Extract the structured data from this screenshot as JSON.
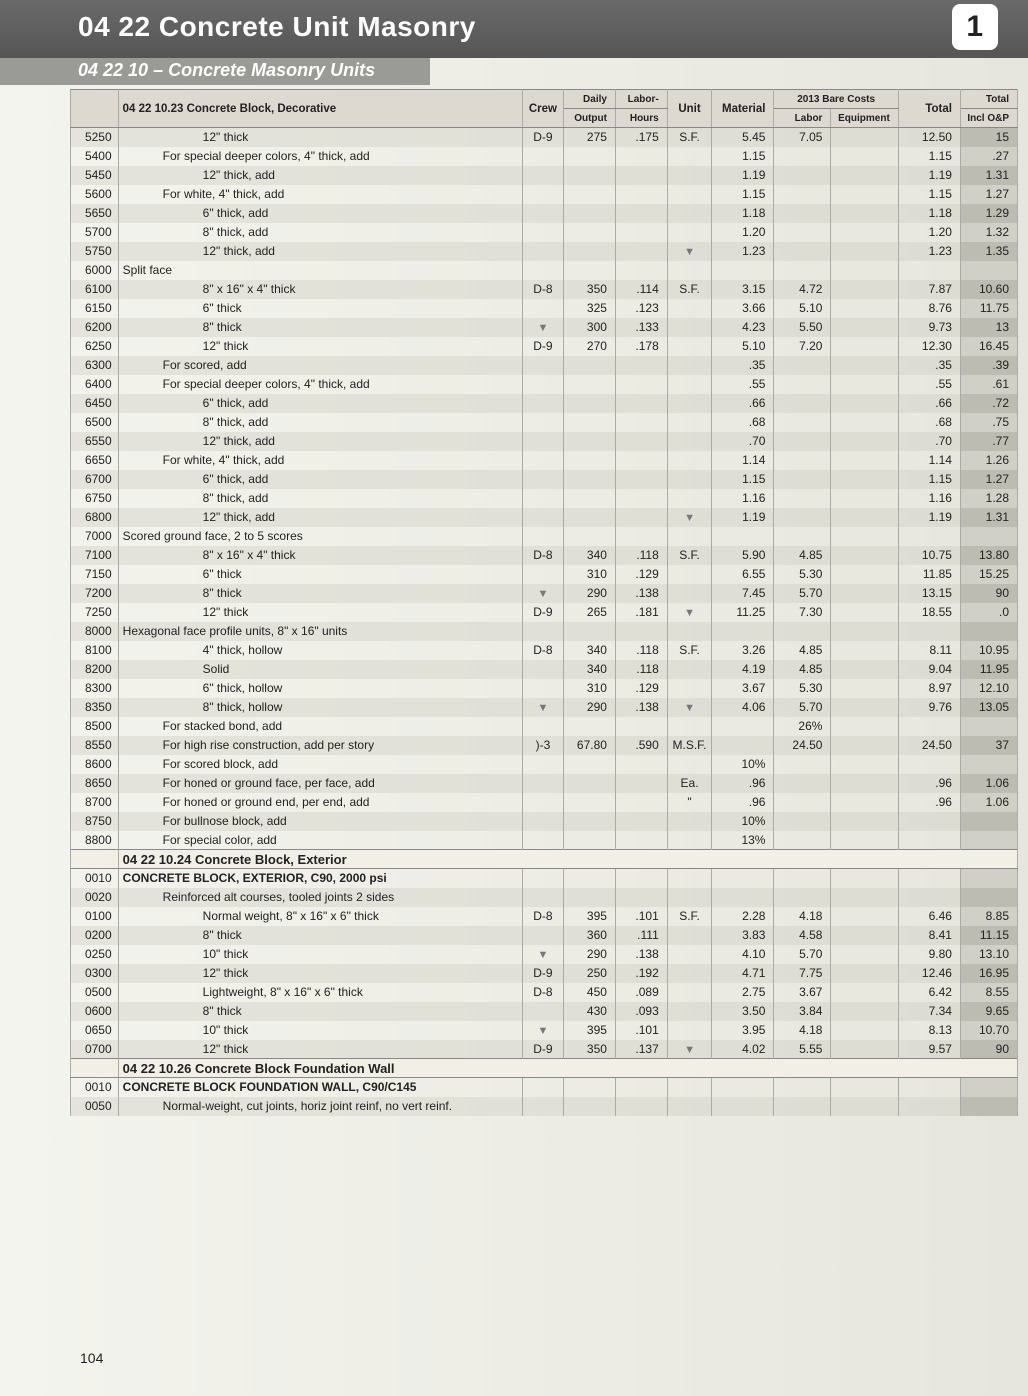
{
  "header": {
    "title": "04 22 Concrete Unit Masonry",
    "subtitle": "04 22 10 – Concrete Masonry Units",
    "page_badge": "1",
    "footer_page": "104"
  },
  "columns": {
    "code": "",
    "desc": "",
    "crew": "Crew",
    "daily_output_top": "Daily",
    "daily_output_bot": "Output",
    "labor_hours_top": "Labor-",
    "labor_hours_bot": "Hours",
    "unit": "Unit",
    "material": "Material",
    "labor": "Labor",
    "equipment": "Equipment",
    "total": "Total",
    "bare_header": "2013 Bare Costs",
    "incl_top": "Total",
    "incl_bot": "Incl O&P"
  },
  "sections": [
    {
      "title": "04 22 10.23  Concrete Block, Decorative",
      "rows": [
        {
          "code": "5250",
          "desc": "12\" thick",
          "indent": 2,
          "crew": "D-9",
          "out": "275",
          "hrs": ".175",
          "unit": "S.F.",
          "mat": "5.45",
          "lab": "7.05",
          "tot": "12.50",
          "op": "15",
          "stripe": true
        },
        {
          "code": "5400",
          "desc": "For special deeper colors, 4\" thick, add",
          "indent": 1,
          "mat": "1.15",
          "tot": "1.15",
          "op": ".27"
        },
        {
          "code": "5450",
          "desc": "12\" thick, add",
          "indent": 2,
          "mat": "1.19",
          "tot": "1.19",
          "op": "1.31",
          "stripe": true
        },
        {
          "code": "5600",
          "desc": "For white, 4\" thick, add",
          "indent": 1,
          "mat": "1.15",
          "tot": "1.15",
          "op": "1.27"
        },
        {
          "code": "5650",
          "desc": "6\" thick, add",
          "indent": 2,
          "mat": "1.18",
          "tot": "1.18",
          "op": "1.29",
          "stripe": true
        },
        {
          "code": "5700",
          "desc": "8\" thick, add",
          "indent": 2,
          "mat": "1.20",
          "tot": "1.20",
          "op": "1.32"
        },
        {
          "code": "5750",
          "desc": "12\" thick, add",
          "indent": 2,
          "mat": "1.23",
          "tot": "1.23",
          "op": "1.35",
          "arrow": true,
          "stripe": true
        },
        {
          "code": "6000",
          "desc": "Split face",
          "indent": 0
        },
        {
          "code": "6100",
          "desc": "8\" x 16\" x 4\" thick",
          "indent": 2,
          "crew": "D-8",
          "out": "350",
          "hrs": ".114",
          "unit": "S.F.",
          "mat": "3.15",
          "lab": "4.72",
          "tot": "7.87",
          "op": "10.60",
          "stripe": true
        },
        {
          "code": "6150",
          "desc": "6\" thick",
          "indent": 2,
          "out": "325",
          "hrs": ".123",
          "mat": "3.66",
          "lab": "5.10",
          "tot": "8.76",
          "op": "11.75"
        },
        {
          "code": "6200",
          "desc": "8\" thick",
          "indent": 2,
          "crewArrow": true,
          "out": "300",
          "hrs": ".133",
          "mat": "4.23",
          "lab": "5.50",
          "tot": "9.73",
          "op": "13",
          "stripe": true
        },
        {
          "code": "6250",
          "desc": "12\" thick",
          "indent": 2,
          "crew": "D-9",
          "out": "270",
          "hrs": ".178",
          "mat": "5.10",
          "lab": "7.20",
          "tot": "12.30",
          "op": "16.45"
        },
        {
          "code": "6300",
          "desc": "For scored, add",
          "indent": 1,
          "mat": ".35",
          "tot": ".35",
          "op": ".39",
          "stripe": true
        },
        {
          "code": "6400",
          "desc": "For special deeper colors, 4\" thick, add",
          "indent": 1,
          "mat": ".55",
          "tot": ".55",
          "op": ".61"
        },
        {
          "code": "6450",
          "desc": "6\" thick, add",
          "indent": 2,
          "mat": ".66",
          "tot": ".66",
          "op": ".72",
          "stripe": true
        },
        {
          "code": "6500",
          "desc": "8\" thick, add",
          "indent": 2,
          "mat": ".68",
          "tot": ".68",
          "op": ".75"
        },
        {
          "code": "6550",
          "desc": "12\" thick, add",
          "indent": 2,
          "mat": ".70",
          "tot": ".70",
          "op": ".77",
          "stripe": true
        },
        {
          "code": "6650",
          "desc": "For white, 4\" thick, add",
          "indent": 1,
          "mat": "1.14",
          "tot": "1.14",
          "op": "1.26"
        },
        {
          "code": "6700",
          "desc": "6\" thick, add",
          "indent": 2,
          "mat": "1.15",
          "tot": "1.15",
          "op": "1.27",
          "stripe": true
        },
        {
          "code": "6750",
          "desc": "8\" thick, add",
          "indent": 2,
          "mat": "1.16",
          "tot": "1.16",
          "op": "1.28"
        },
        {
          "code": "6800",
          "desc": "12\" thick, add",
          "indent": 2,
          "mat": "1.19",
          "tot": "1.19",
          "op": "1.31",
          "arrow": true,
          "stripe": true
        },
        {
          "code": "7000",
          "desc": "Scored ground face, 2 to 5 scores",
          "indent": 0
        },
        {
          "code": "7100",
          "desc": "8\" x 16\" x 4\" thick",
          "indent": 2,
          "crew": "D-8",
          "out": "340",
          "hrs": ".118",
          "unit": "S.F.",
          "mat": "5.90",
          "lab": "4.85",
          "tot": "10.75",
          "op": "13.80",
          "stripe": true
        },
        {
          "code": "7150",
          "desc": "6\" thick",
          "indent": 2,
          "out": "310",
          "hrs": ".129",
          "mat": "6.55",
          "lab": "5.30",
          "tot": "11.85",
          "op": "15.25"
        },
        {
          "code": "7200",
          "desc": "8\" thick",
          "indent": 2,
          "crewArrow": true,
          "out": "290",
          "hrs": ".138",
          "mat": "7.45",
          "lab": "5.70",
          "tot": "13.15",
          "op": "90",
          "stripe": true
        },
        {
          "code": "7250",
          "desc": "12\" thick",
          "indent": 2,
          "crew": "D-9",
          "out": "265",
          "hrs": ".181",
          "mat": "11.25",
          "lab": "7.30",
          "tot": "18.55",
          "op": ".0",
          "arrow": true
        },
        {
          "code": "8000",
          "desc": "Hexagonal face profile units, 8\" x 16\" units",
          "indent": 0,
          "stripe": true
        },
        {
          "code": "8100",
          "desc": "4\" thick, hollow",
          "indent": 2,
          "crew": "D-8",
          "out": "340",
          "hrs": ".118",
          "unit": "S.F.",
          "mat": "3.26",
          "lab": "4.85",
          "tot": "8.11",
          "op": "10.95"
        },
        {
          "code": "8200",
          "desc": "Solid",
          "indent": 2,
          "out": "340",
          "hrs": ".118",
          "mat": "4.19",
          "lab": "4.85",
          "tot": "9.04",
          "op": "11.95",
          "stripe": true
        },
        {
          "code": "8300",
          "desc": "6\" thick, hollow",
          "indent": 2,
          "out": "310",
          "hrs": ".129",
          "mat": "3.67",
          "lab": "5.30",
          "tot": "8.97",
          "op": "12.10"
        },
        {
          "code": "8350",
          "desc": "8\" thick, hollow",
          "indent": 2,
          "crewArrow": true,
          "out": "290",
          "hrs": ".138",
          "mat": "4.06",
          "lab": "5.70",
          "tot": "9.76",
          "op": "13.05",
          "arrow": true,
          "stripe": true
        },
        {
          "code": "8500",
          "desc": "For stacked bond, add",
          "indent": 1,
          "lab": "26%"
        },
        {
          "code": "8550",
          "desc": "For high rise construction, add per story",
          "indent": 1,
          "crew": ")-3",
          "out": "67.80",
          "hrs": ".590",
          "unit": "M.S.F.",
          "lab": "24.50",
          "tot": "24.50",
          "op": "37",
          "stripe": true
        },
        {
          "code": "8600",
          "desc": "For scored block, add",
          "indent": 1,
          "mat": "10%"
        },
        {
          "code": "8650",
          "desc": "For honed or ground face, per face, add",
          "indent": 1,
          "unit": "Ea.",
          "mat": ".96",
          "tot": ".96",
          "op": "1.06",
          "stripe": true
        },
        {
          "code": "8700",
          "desc": "For honed or ground end, per end, add",
          "indent": 1,
          "unit": "\"",
          "mat": ".96",
          "tot": ".96",
          "op": "1.06"
        },
        {
          "code": "8750",
          "desc": "For bullnose block, add",
          "indent": 1,
          "mat": "10%",
          "stripe": true
        },
        {
          "code": "8800",
          "desc": "For special color, add",
          "indent": 1,
          "mat": "13%"
        }
      ]
    },
    {
      "title": "04 22 10.24  Concrete Block, Exterior",
      "rows": [
        {
          "code": "0010",
          "desc": "CONCRETE BLOCK, EXTERIOR, C90, 2000 psi",
          "indent": 0,
          "bold": true
        },
        {
          "code": "0020",
          "desc": "Reinforced alt courses, tooled joints 2 sides",
          "indent": 1,
          "stripe": true
        },
        {
          "code": "0100",
          "desc": "Normal weight, 8\" x 16\" x 6\" thick",
          "indent": 2,
          "crew": "D-8",
          "out": "395",
          "hrs": ".101",
          "unit": "S.F.",
          "mat": "2.28",
          "lab": "4.18",
          "tot": "6.46",
          "op": "8.85"
        },
        {
          "code": "0200",
          "desc": "8\" thick",
          "indent": 2,
          "out": "360",
          "hrs": ".111",
          "mat": "3.83",
          "lab": "4.58",
          "tot": "8.41",
          "op": "11.15",
          "stripe": true
        },
        {
          "code": "0250",
          "desc": "10\" thick",
          "indent": 2,
          "crewArrow": true,
          "out": "290",
          "hrs": ".138",
          "mat": "4.10",
          "lab": "5.70",
          "tot": "9.80",
          "op": "13.10"
        },
        {
          "code": "0300",
          "desc": "12\" thick",
          "indent": 2,
          "crew": "D-9",
          "out": "250",
          "hrs": ".192",
          "mat": "4.71",
          "lab": "7.75",
          "tot": "12.46",
          "op": "16.95",
          "stripe": true
        },
        {
          "code": "0500",
          "desc": "Lightweight, 8\" x 16\" x 6\" thick",
          "indent": 2,
          "crew": "D-8",
          "out": "450",
          "hrs": ".089",
          "mat": "2.75",
          "lab": "3.67",
          "tot": "6.42",
          "op": "8.55"
        },
        {
          "code": "0600",
          "desc": "8\" thick",
          "indent": 2,
          "out": "430",
          "hrs": ".093",
          "mat": "3.50",
          "lab": "3.84",
          "tot": "7.34",
          "op": "9.65",
          "stripe": true
        },
        {
          "code": "0650",
          "desc": "10\" thick",
          "indent": 2,
          "crewArrow": true,
          "out": "395",
          "hrs": ".101",
          "mat": "3.95",
          "lab": "4.18",
          "tot": "8.13",
          "op": "10.70"
        },
        {
          "code": "0700",
          "desc": "12\" thick",
          "indent": 2,
          "crew": "D-9",
          "out": "350",
          "hrs": ".137",
          "mat": "4.02",
          "lab": "5.55",
          "tot": "9.57",
          "op": "90",
          "arrow": true,
          "stripe": true
        }
      ]
    },
    {
      "title": "04 22 10.26  Concrete Block Foundation Wall",
      "rows": [
        {
          "code": "0010",
          "desc": "CONCRETE BLOCK FOUNDATION WALL, C90/C145",
          "indent": 0,
          "bold": true
        },
        {
          "code": "0050",
          "desc": "Normal-weight, cut joints, horiz joint reinf, no vert reinf.",
          "indent": 1,
          "stripe": true
        }
      ]
    }
  ]
}
